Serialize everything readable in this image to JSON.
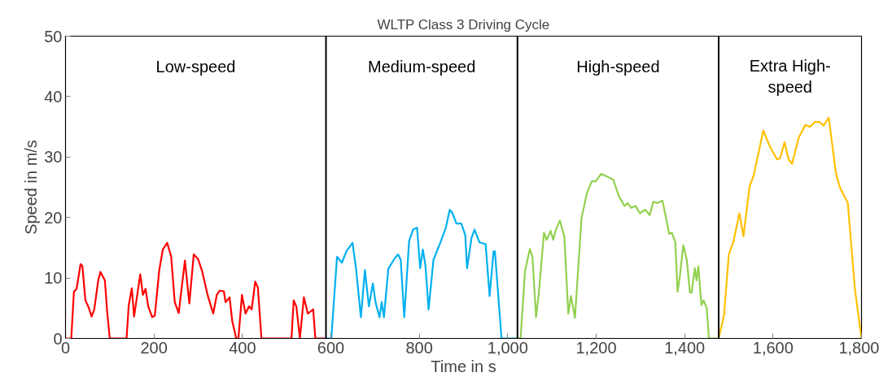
{
  "chart_data": {
    "type": "line",
    "title": "WLTP Class 3 Driving Cycle",
    "xlabel": "Time in s",
    "ylabel": "Speed in m/s",
    "xlim": [
      0,
      1800
    ],
    "ylim": [
      0,
      50
    ],
    "xticks": [
      0,
      200,
      400,
      600,
      800,
      {
        "value": 1000,
        "label": "1,000"
      },
      {
        "value": 1200,
        "label": "1,200"
      },
      {
        "value": 1400,
        "label": "1,400"
      },
      {
        "value": 1600,
        "label": "1,600"
      },
      {
        "value": 1800,
        "label": "1,800"
      }
    ],
    "yticks": [
      0,
      10,
      20,
      30,
      40,
      50
    ],
    "grid": false,
    "marker": "none",
    "line_style": "solid",
    "annotations": [
      "Low-speed",
      "Medium-speed",
      "High-speed",
      "Extra High-speed"
    ],
    "ref_lines": [
      {
        "axis": "x",
        "value": 589,
        "color": "#000000"
      },
      {
        "axis": "x",
        "value": 1022,
        "color": "#000000"
      },
      {
        "axis": "x",
        "value": 1477,
        "color": "#000000"
      }
    ],
    "series": [
      {
        "color": "#ff0000",
        "x": [
          0,
          13,
          19,
          25,
          34,
          38,
          45,
          53,
          59,
          65,
          74,
          79,
          89,
          94,
          100,
          138,
          143,
          150,
          155,
          169,
          175,
          181,
          187,
          196,
          202,
          212,
          220,
          230,
          239,
          247,
          256,
          270,
          280,
          290,
          300,
          309,
          322,
          334,
          342,
          349,
          358,
          362,
          371,
          377,
          386,
          391,
          399,
          407,
          415,
          421,
          429,
          435,
          443,
          511,
          516,
          522,
          530,
          539,
          548,
          560,
          565,
          589
        ],
        "values": [
          0,
          0,
          7.7,
          8.2,
          12.3,
          12.0,
          6.3,
          5.0,
          3.6,
          4.8,
          9.6,
          11.0,
          9.6,
          4.6,
          0,
          0,
          5.5,
          8.3,
          3.6,
          10.6,
          7.2,
          8.2,
          5.3,
          3.5,
          3.8,
          11.3,
          14.7,
          15.8,
          13.5,
          6.0,
          4.2,
          12.9,
          5.8,
          13.9,
          13.1,
          11.1,
          7.0,
          4.1,
          7.2,
          7.9,
          7.8,
          6.0,
          6.8,
          2.9,
          0,
          0,
          7.2,
          4.1,
          5.3,
          4.8,
          9.4,
          8.4,
          0,
          0,
          6.3,
          5.3,
          0,
          6.8,
          4.1,
          4.8,
          0,
          0
        ]
      },
      {
        "color": "#00b0f0",
        "x": [
          589,
          601,
          614,
          625,
          635,
          649,
          657,
          668,
          677,
          686,
          695,
          701,
          710,
          715,
          720,
          730,
          744,
          752,
          758,
          766,
          777,
          786,
          795,
          802,
          808,
          814,
          821,
          832,
          848,
          860,
          869,
          875,
          884,
          895,
          904,
          908,
          918,
          925,
          936,
          950,
          959,
          968,
          971,
          986,
          1022
        ],
        "values": [
          0,
          0,
          13.5,
          12.5,
          14.4,
          15.8,
          11.5,
          3.5,
          11.3,
          5.3,
          9.1,
          6.0,
          3.5,
          6.0,
          3.5,
          11.5,
          13.2,
          13.9,
          13.0,
          3.5,
          16.1,
          18.0,
          18.3,
          11.6,
          14.7,
          12.0,
          4.8,
          13.0,
          15.9,
          18.3,
          21.3,
          20.7,
          19.0,
          19.0,
          17.1,
          11.6,
          16.6,
          18.0,
          15.9,
          15.6,
          7.0,
          14.4,
          14.4,
          0,
          0
        ]
      },
      {
        "color": "#92d050",
        "x": [
          1022,
          1029,
          1039,
          1050,
          1056,
          1064,
          1070,
          1082,
          1088,
          1097,
          1103,
          1109,
          1118,
          1128,
          1137,
          1143,
          1152,
          1167,
          1179,
          1190,
          1199,
          1211,
          1227,
          1239,
          1251,
          1264,
          1271,
          1279,
          1289,
          1299,
          1311,
          1321,
          1329,
          1339,
          1350,
          1361,
          1365,
          1371,
          1379,
          1384,
          1389,
          1397,
          1405,
          1412,
          1416,
          1423,
          1427,
          1431,
          1438,
          1443,
          1450,
          1455,
          1465,
          1477
        ],
        "values": [
          0,
          0,
          11.1,
          14.8,
          13.5,
          3.5,
          7.2,
          17.5,
          16.3,
          17.8,
          16.3,
          18.0,
          19.5,
          16.8,
          4.1,
          7.0,
          3.4,
          20.0,
          24.0,
          26.0,
          26.0,
          27.2,
          26.7,
          26.2,
          23.6,
          21.9,
          22.4,
          21.6,
          21.9,
          20.7,
          21.3,
          20.4,
          22.6,
          22.4,
          22.8,
          18.8,
          17.3,
          17.5,
          15.9,
          7.7,
          10.1,
          15.4,
          13.0,
          7.6,
          7.6,
          11.6,
          9.6,
          11.9,
          5.5,
          6.3,
          5.0,
          0,
          0,
          0
        ]
      },
      {
        "color": "#ffc000",
        "x": [
          1477,
          1489,
          1500,
          1510,
          1524,
          1533,
          1547,
          1556,
          1578,
          1593,
          1609,
          1616,
          1626,
          1635,
          1643,
          1658,
          1673,
          1683,
          1695,
          1705,
          1714,
          1726,
          1742,
          1751,
          1769,
          1785,
          1800
        ],
        "values": [
          0,
          3.8,
          13.9,
          15.9,
          20.7,
          16.9,
          25.2,
          26.9,
          34.4,
          31.7,
          29.6,
          29.8,
          32.5,
          29.6,
          28.9,
          33.2,
          35.3,
          35.0,
          35.8,
          35.8,
          35.2,
          36.5,
          27.4,
          25.0,
          22.4,
          8.2,
          0
        ]
      }
    ]
  }
}
